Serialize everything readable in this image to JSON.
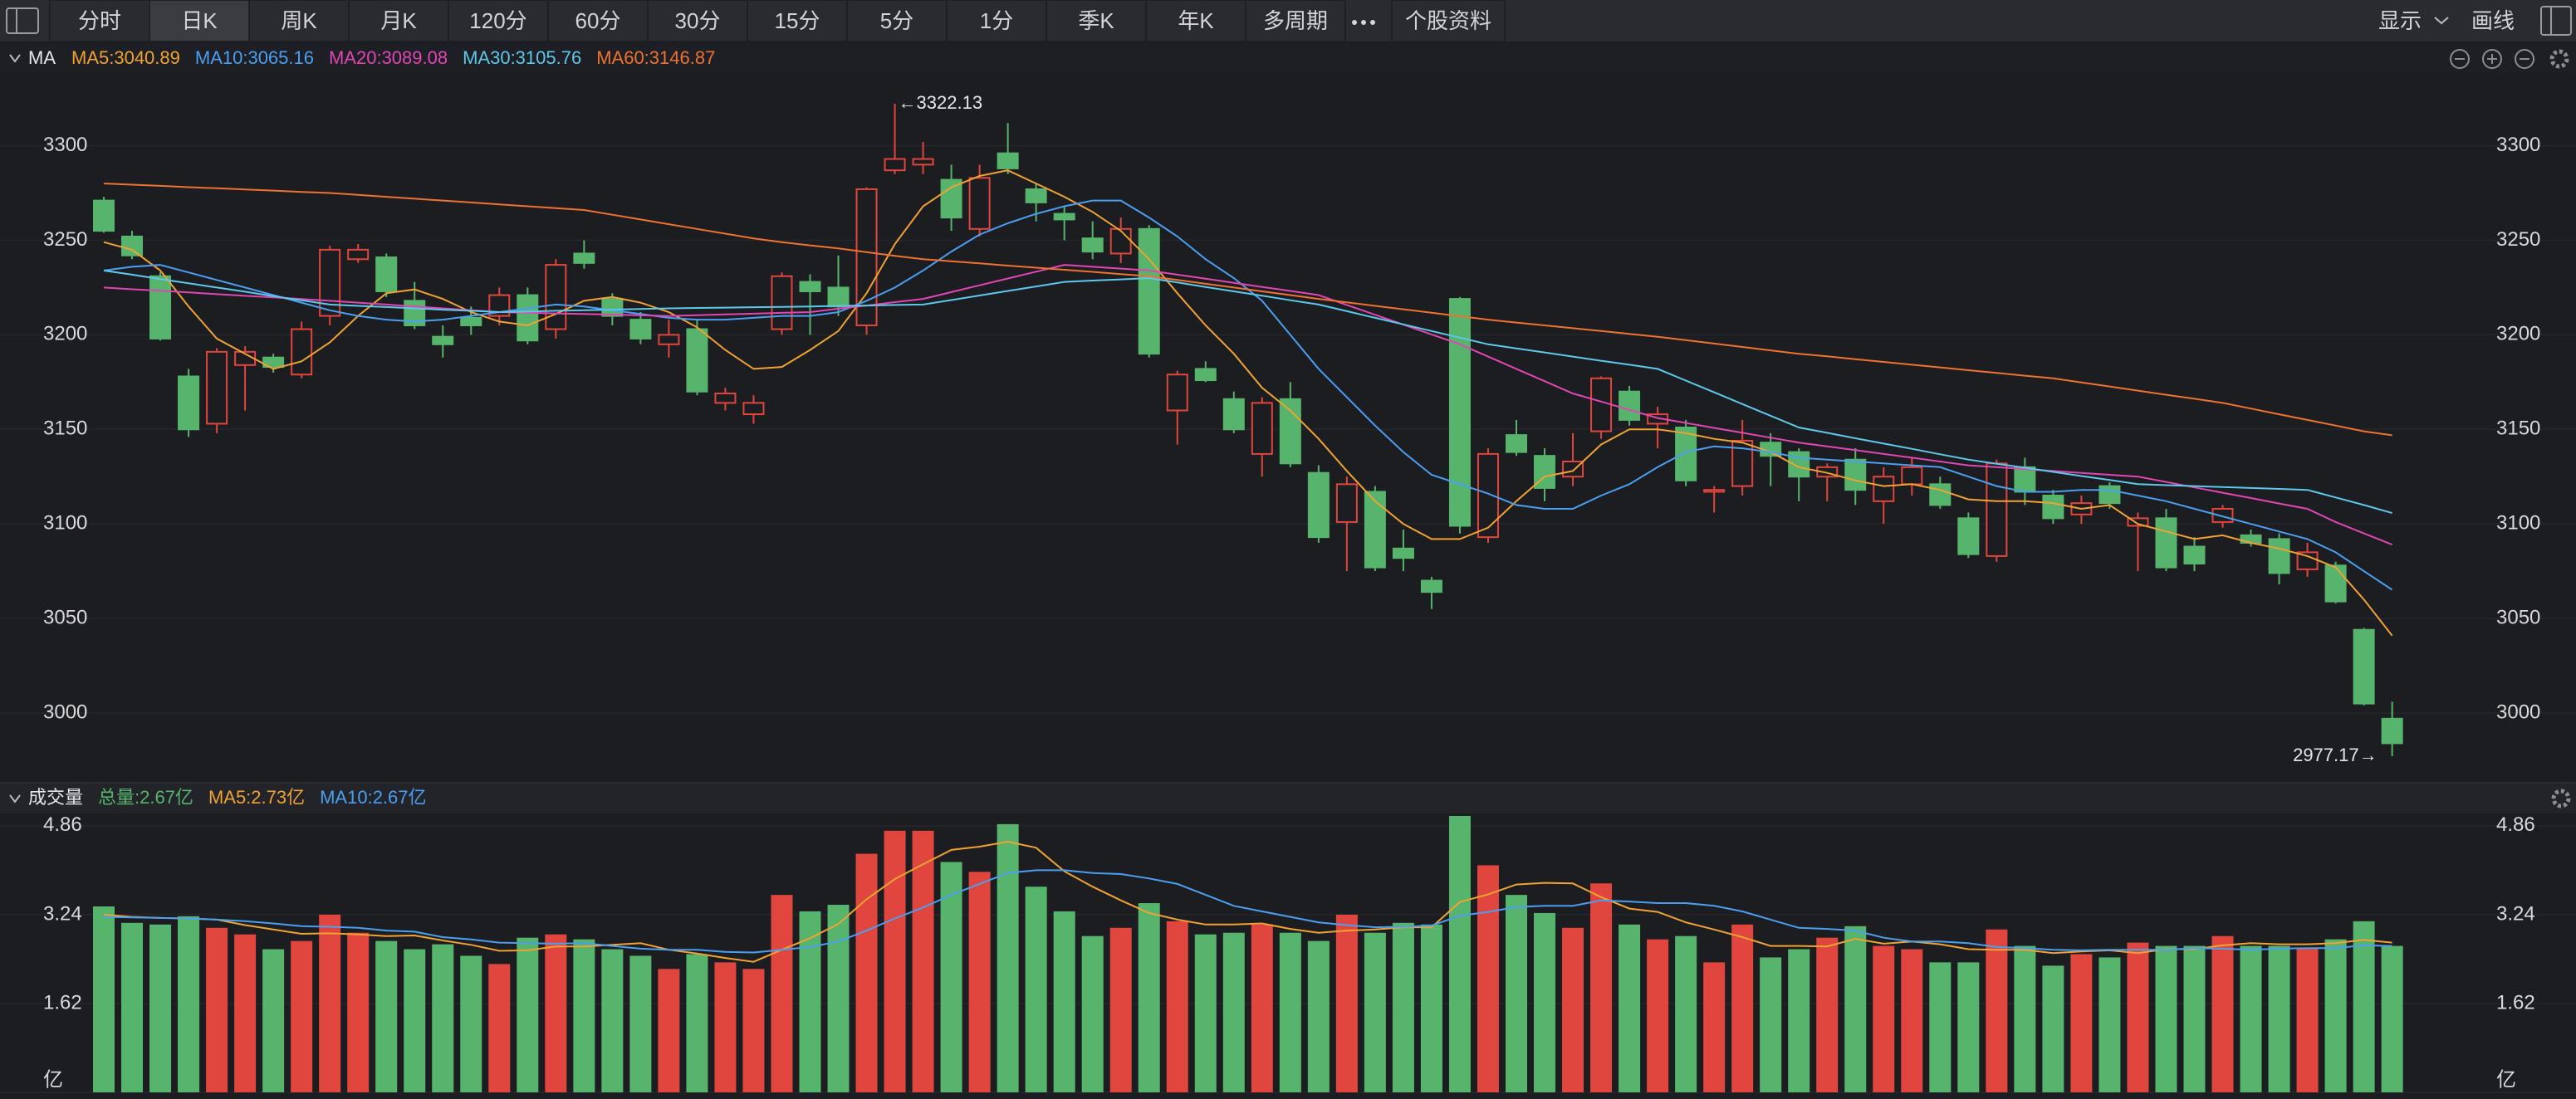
{
  "toolbar": {
    "tabs": [
      "分时",
      "日K",
      "周K",
      "月K",
      "120分",
      "60分",
      "30分",
      "15分",
      "5分",
      "1分",
      "季K",
      "年K",
      "多周期",
      "个股资料"
    ],
    "right": [
      "显示",
      "画线"
    ]
  },
  "chart_data": [
    {
      "type": "candlestick",
      "title": "MA",
      "ylim": [
        2964,
        3338
      ],
      "yticks": [
        3000,
        3050,
        3100,
        3150,
        3200,
        3250,
        3300
      ],
      "grid": true,
      "up_color": "#e0453e",
      "down_color": "#57b46c",
      "annotations": [
        "←3322.13",
        "2977.17→"
      ],
      "open": [
        3271,
        3252,
        3231,
        3178,
        3153,
        3184,
        3188,
        3179,
        3210,
        3240,
        3241,
        3218,
        3199,
        3209,
        3210,
        3221,
        3203,
        3243,
        3219,
        3208,
        3195,
        3203,
        3164,
        3158,
        3203,
        3228,
        3225,
        3205,
        3287,
        3290,
        3282,
        3256,
        3296,
        3277,
        3264,
        3251,
        3243,
        3256,
        3160,
        3182,
        3166,
        3137,
        3166,
        3127,
        3101,
        3117,
        3087,
        3070,
        3219,
        3093,
        3147,
        3136,
        3125,
        3149,
        3170,
        3153,
        3151,
        3117,
        3120,
        3143,
        3138,
        3125,
        3134,
        3112,
        3121,
        3121,
        3103,
        3083,
        3130,
        3115,
        3105,
        3120,
        3099,
        3103,
        3088,
        3101,
        3094,
        3092,
        3076,
        3078,
        3044,
        2997
      ],
      "high": [
        3273,
        3255,
        3233,
        3182,
        3193,
        3194,
        3190,
        3207,
        3247,
        3248,
        3243,
        3228,
        3205,
        3215,
        3225,
        3225,
        3240,
        3250,
        3222,
        3212,
        3208,
        3208,
        3172,
        3168,
        3233,
        3232,
        3242,
        3278,
        3322.13,
        3302,
        3290,
        3290,
        3312,
        3280,
        3268,
        3260,
        3262,
        3258,
        3181,
        3186,
        3170,
        3167,
        3175,
        3131,
        3125,
        3120,
        3097,
        3072,
        3220,
        3140,
        3155,
        3140,
        3148,
        3178,
        3173,
        3162,
        3155,
        3120,
        3155,
        3148,
        3140,
        3132,
        3140,
        3130,
        3135,
        3125,
        3106,
        3134,
        3135,
        3118,
        3115,
        3122,
        3106,
        3108,
        3093,
        3110,
        3097,
        3095,
        3090,
        3080,
        3045,
        3006
      ],
      "low": [
        3254,
        3240,
        3197,
        3146,
        3148,
        3160,
        3180,
        3177,
        3205,
        3238,
        3220,
        3203,
        3188,
        3200,
        3205,
        3195,
        3198,
        3235,
        3205,
        3195,
        3188,
        3168,
        3160,
        3153,
        3200,
        3200,
        3210,
        3200,
        3285,
        3285,
        3255,
        3252,
        3285,
        3260,
        3250,
        3240,
        3238,
        3188,
        3142,
        3175,
        3148,
        3125,
        3130,
        3090,
        3075,
        3075,
        3075,
        3055,
        3095,
        3090,
        3136,
        3112,
        3120,
        3145,
        3152,
        3140,
        3120,
        3106,
        3115,
        3120,
        3112,
        3112,
        3110,
        3100,
        3115,
        3108,
        3082,
        3080,
        3110,
        3100,
        3100,
        3108,
        3075,
        3075,
        3075,
        3098,
        3088,
        3068,
        3072,
        3058,
        3004,
        2977.17
      ],
      "close": [
        3255,
        3242,
        3198,
        3150,
        3191,
        3191,
        3183,
        3203,
        3245,
        3245,
        3223,
        3205,
        3195,
        3205,
        3221,
        3197,
        3237,
        3238,
        3210,
        3198,
        3200,
        3170,
        3169,
        3164,
        3231,
        3223,
        3215,
        3277,
        3293,
        3293,
        3262,
        3283,
        3288,
        3270,
        3261,
        3244,
        3256,
        3190,
        3179,
        3176,
        3150,
        3164,
        3132,
        3093,
        3121,
        3077,
        3082,
        3064,
        3099,
        3137,
        3138,
        3119,
        3133,
        3177,
        3155,
        3158,
        3123,
        3118,
        3144,
        3136,
        3125,
        3130,
        3118,
        3125,
        3130,
        3110,
        3084,
        3132,
        3117,
        3103,
        3111,
        3111,
        3103,
        3077,
        3079,
        3108,
        3090,
        3074,
        3085,
        3059,
        3005,
        2984
      ],
      "series": [
        {
          "name": "MA5:3040.89",
          "color": "#f0a232",
          "values": [
            3249,
            3245,
            3234,
            3215,
            3198,
            3190,
            3182,
            3186,
            3196,
            3210,
            3222,
            3224,
            3219,
            3212,
            3207,
            3205,
            3211,
            3218,
            3220,
            3217,
            3212,
            3204,
            3192,
            3182,
            3183,
            3192,
            3202,
            3222,
            3248,
            3268,
            3278,
            3284,
            3287,
            3280,
            3273,
            3265,
            3255,
            3240,
            3222,
            3205,
            3190,
            3172,
            3160,
            3145,
            3128,
            3112,
            3100,
            3092,
            3092,
            3098,
            3112,
            3125,
            3128,
            3142,
            3150,
            3150,
            3148,
            3145,
            3143,
            3138,
            3130,
            3127,
            3123,
            3120,
            3121,
            3118,
            3113,
            3112,
            3112,
            3111,
            3108,
            3110,
            3100,
            3096,
            3092,
            3094,
            3090,
            3087,
            3083,
            3077,
            3060,
            3040.89
          ]
        },
        {
          "name": "MA10:3065.16",
          "color": "#4a9ff0",
          "values": [
            3234,
            3236,
            3237,
            3233,
            3229,
            3225,
            3221,
            3217,
            3213,
            3210,
            3208,
            3207,
            3208,
            3210,
            3212,
            3214,
            3216,
            3215,
            3213,
            3211,
            3209,
            3208,
            3208,
            3209,
            3210,
            3210,
            3212,
            3218,
            3225,
            3234,
            3244,
            3253,
            3259,
            3264,
            3268,
            3271,
            3271,
            3262,
            3252,
            3240,
            3230,
            3218,
            3200,
            3182,
            3167,
            3152,
            3138,
            3126,
            3121,
            3116,
            3110,
            3108,
            3108,
            3115,
            3121,
            3130,
            3138,
            3141,
            3140,
            3138,
            3135,
            3134,
            3133,
            3132,
            3131,
            3130,
            3125,
            3120,
            3117,
            3117,
            3118,
            3118,
            3115,
            3112,
            3108,
            3104,
            3100,
            3096,
            3092,
            3085,
            3075,
            3065.16
          ]
        },
        {
          "name": "MA20:3089.08",
          "color": "#e046b4",
          "values": [
            3225,
            3224.1,
            3223.3,
            3222.4,
            3221.5,
            3220.6,
            3219.8,
            3218.9,
            3218,
            3217,
            3216,
            3215,
            3214,
            3213,
            3212,
            3211.7,
            3211.3,
            3211,
            3210.7,
            3210.3,
            3210,
            3210.4,
            3210.8,
            3211.2,
            3211.6,
            3212,
            3213.8,
            3215.5,
            3217.3,
            3219,
            3222.6,
            3226.2,
            3229.8,
            3233.4,
            3237,
            3236,
            3235,
            3234,
            3231.8,
            3229.7,
            3227.5,
            3225.3,
            3223.2,
            3221,
            3215.8,
            3210.6,
            3205.4,
            3200.2,
            3195,
            3188.5,
            3182,
            3175.5,
            3169,
            3164.7,
            3160.3,
            3156,
            3153.4,
            3150.8,
            3148.2,
            3145.6,
            3143,
            3141,
            3139,
            3137,
            3135,
            3133,
            3131,
            3130,
            3129,
            3128,
            3127,
            3126,
            3125,
            3122.2,
            3119.3,
            3116.5,
            3113.7,
            3110.8,
            3108,
            3101,
            3095,
            3089.08
          ]
        },
        {
          "name": "MA30:3105.76",
          "color": "#5ec8ea",
          "values": [
            3234,
            3231.8,
            3229.5,
            3227.3,
            3225,
            3222.8,
            3220.5,
            3218.3,
            3216,
            3215.3,
            3214.7,
            3214,
            3213.3,
            3212.7,
            3212,
            3212.3,
            3212.7,
            3213,
            3213.3,
            3213.7,
            3214,
            3214.2,
            3214.4,
            3214.6,
            3214.8,
            3215,
            3215.3,
            3215.5,
            3215.8,
            3216,
            3218.4,
            3220.8,
            3223.2,
            3225.6,
            3228,
            3228.7,
            3229.3,
            3230,
            3227.7,
            3225.3,
            3223,
            3220.7,
            3218.3,
            3216,
            3212.5,
            3209,
            3205.5,
            3202,
            3198.5,
            3195,
            3192.8,
            3190.7,
            3188.5,
            3186.3,
            3184.2,
            3182,
            3175.8,
            3169.6,
            3163.4,
            3157.2,
            3151,
            3148.2,
            3145.3,
            3142.5,
            3139.7,
            3136.8,
            3134,
            3131.8,
            3129.7,
            3127.5,
            3125.3,
            3123.2,
            3121,
            3120.5,
            3120,
            3119.5,
            3119,
            3118.5,
            3118,
            3114,
            3110,
            3105.76
          ]
        },
        {
          "name": "MA60:3146.87",
          "color": "#f07230",
          "values": [
            3280,
            3279.4,
            3278.8,
            3278.1,
            3277.5,
            3276.9,
            3276.3,
            3275.6,
            3275,
            3274,
            3273,
            3272,
            3271,
            3270,
            3269,
            3268,
            3267,
            3266,
            3263.5,
            3261,
            3258.5,
            3256,
            3253.5,
            3251,
            3249,
            3247.3,
            3245.7,
            3243.7,
            3241.8,
            3240,
            3238.9,
            3237.8,
            3236.6,
            3235.5,
            3234.4,
            3233.3,
            3232.1,
            3231,
            3229,
            3227,
            3225,
            3223,
            3221,
            3219,
            3217.2,
            3215.3,
            3213.5,
            3211.7,
            3209.8,
            3208,
            3206.5,
            3205,
            3203.5,
            3202,
            3200.5,
            3199,
            3197.2,
            3195.4,
            3193.6,
            3191.8,
            3190,
            3188.6,
            3187.1,
            3185.7,
            3184.2,
            3182.8,
            3181.3,
            3179.9,
            3178.4,
            3177,
            3174.8,
            3172.7,
            3170.5,
            3168.3,
            3166.2,
            3164,
            3161,
            3158,
            3155,
            3152,
            3149,
            3146.87
          ]
        }
      ]
    },
    {
      "type": "bar",
      "title": "成交量",
      "ylim": [
        0,
        5.07
      ],
      "yticks": [
        {
          "value": 0,
          "label": "亿"
        },
        1.62,
        3.24,
        4.86
      ],
      "grid": true,
      "series": [
        {
          "name": "总量:2.67亿",
          "color": "#57b46c",
          "values": [
            3.39,
            3.09,
            3.06,
            3.21,
            3.0,
            2.88,
            2.61,
            2.76,
            3.24,
            2.91,
            2.76,
            2.61,
            2.7,
            2.49,
            2.34,
            2.82,
            2.88,
            2.79,
            2.61,
            2.49,
            2.25,
            2.52,
            2.37,
            2.25,
            3.6,
            3.3,
            3.42,
            4.35,
            4.77,
            4.77,
            4.2,
            4.02,
            4.89,
            3.75,
            3.3,
            2.85,
            3.0,
            3.45,
            3.12,
            2.88,
            2.91,
            3.06,
            2.91,
            2.76,
            3.24,
            2.91,
            3.09,
            3.06,
            5.04,
            4.14,
            3.6,
            3.27,
            3.0,
            3.81,
            3.06,
            2.79,
            2.85,
            2.37,
            3.06,
            2.46,
            2.61,
            2.82,
            3.03,
            2.67,
            2.61,
            2.37,
            2.37,
            2.97,
            2.67,
            2.31,
            2.52,
            2.46,
            2.73,
            2.67,
            2.67,
            2.85,
            2.67,
            2.67,
            2.64,
            2.79,
            3.12,
            2.67
          ]
        },
        {
          "name": "MA5:2.73亿",
          "type": "line",
          "color": "#f0a232",
          "values": [
            3.24,
            3.2,
            3.18,
            3.17,
            3.15,
            3.05,
            2.97,
            2.89,
            2.9,
            2.88,
            2.85,
            2.86,
            2.77,
            2.69,
            2.58,
            2.59,
            2.66,
            2.66,
            2.69,
            2.72,
            2.6,
            2.53,
            2.45,
            2.38,
            2.6,
            2.81,
            3.07,
            3.52,
            3.89,
            4.16,
            4.42,
            4.48,
            4.57,
            4.46,
            4.03,
            3.75,
            3.5,
            3.27,
            3.15,
            3.06,
            3.06,
            3.08,
            2.98,
            2.91,
            2.95,
            2.97,
            3.01,
            3.01,
            3.47,
            3.61,
            3.79,
            3.82,
            3.81,
            3.56,
            3.35,
            3.29,
            3.1,
            2.97,
            2.83,
            2.67,
            2.67,
            2.66,
            2.8,
            2.71,
            2.75,
            2.7,
            2.61,
            2.6,
            2.6,
            2.54,
            2.57,
            2.59,
            2.54,
            2.61,
            2.61,
            2.68,
            2.72,
            2.7,
            2.7,
            2.72,
            2.78,
            2.73
          ]
        },
        {
          "name": "MA10:2.67亿",
          "type": "line",
          "color": "#4a9ff0",
          "values": [
            3.2,
            3.19,
            3.18,
            3.17,
            3.15,
            3.12,
            3.08,
            3.03,
            3.02,
            3.0,
            2.95,
            2.93,
            2.83,
            2.79,
            2.73,
            2.72,
            2.71,
            2.72,
            2.67,
            2.62,
            2.6,
            2.6,
            2.56,
            2.55,
            2.6,
            2.65,
            2.75,
            2.95,
            3.17,
            3.37,
            3.6,
            3.8,
            4.0,
            4.05,
            4.05,
            4.0,
            3.98,
            3.9,
            3.8,
            3.6,
            3.4,
            3.3,
            3.2,
            3.1,
            3.05,
            3.01,
            3.02,
            3.04,
            3.22,
            3.29,
            3.38,
            3.4,
            3.4,
            3.5,
            3.48,
            3.45,
            3.45,
            3.4,
            3.3,
            3.15,
            3.0,
            2.98,
            2.95,
            2.82,
            2.75,
            2.75,
            2.72,
            2.65,
            2.63,
            2.6,
            2.59,
            2.6,
            2.6,
            2.6,
            2.63,
            2.62,
            2.6,
            2.62,
            2.63,
            2.63,
            2.68,
            2.67
          ]
        }
      ]
    }
  ]
}
